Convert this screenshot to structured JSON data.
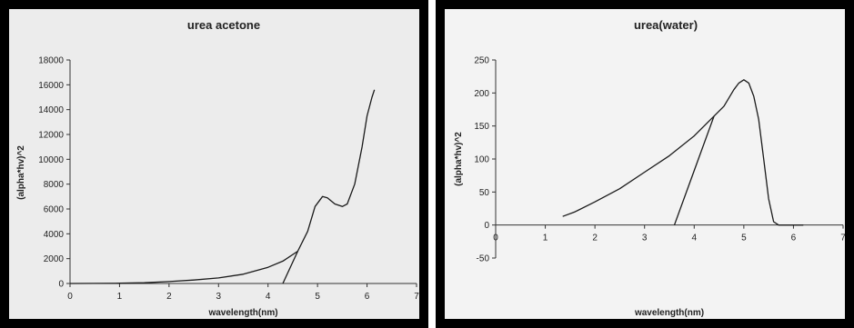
{
  "chart_data": [
    {
      "type": "line",
      "title": "urea acetone",
      "xlabel": "wavelength(nm)",
      "ylabel": "(alpha*hv)^2",
      "xlim": [
        0,
        7
      ],
      "ylim": [
        0,
        18000
      ],
      "xticks": [
        "0",
        "1",
        "2",
        "3",
        "4",
        "5",
        "6",
        "7"
      ],
      "yticks": [
        "0",
        "2000",
        "4000",
        "6000",
        "8000",
        "10000",
        "12000",
        "14000",
        "16000",
        "18000"
      ],
      "grid": false,
      "legend": "none",
      "series": [
        {
          "x": [
            0,
            0.5,
            1,
            1.5,
            2,
            2.5,
            3,
            3.5,
            4,
            4.3,
            4.6,
            4.8,
            4.95,
            5.1,
            5.2,
            5.35,
            5.5,
            5.6,
            5.75,
            5.9,
            6.0,
            6.1,
            6.15
          ],
          "y": [
            0,
            5,
            20,
            60,
            150,
            280,
            450,
            750,
            1300,
            1800,
            2600,
            4200,
            6200,
            7000,
            6900,
            6400,
            6200,
            6400,
            8000,
            11000,
            13500,
            15000,
            15600
          ]
        },
        {
          "x": [
            4.3,
            4.6
          ],
          "y": [
            0,
            2600
          ]
        }
      ],
      "colors": {
        "line": "#1a1a1a",
        "plot_bg": "#ececec"
      }
    },
    {
      "type": "line",
      "title": "urea(water)",
      "xlabel": "wavelength(nm)",
      "ylabel": "(alpha*hv)^2",
      "xlim": [
        0,
        7
      ],
      "ylim": [
        -50,
        250
      ],
      "xticks": [
        "0",
        "1",
        "2",
        "3",
        "4",
        "5",
        "6",
        "7"
      ],
      "yticks": [
        "-50",
        "0",
        "50",
        "100",
        "150",
        "200",
        "250"
      ],
      "grid": false,
      "legend": "none",
      "series": [
        {
          "x": [
            1.35,
            1.6,
            2,
            2.5,
            3,
            3.5,
            4,
            4.4,
            4.6,
            4.8,
            4.9,
            5.0,
            5.1,
            5.2,
            5.3,
            5.4,
            5.5,
            5.6,
            5.7,
            5.8,
            6.0,
            6.2
          ],
          "y": [
            13,
            20,
            35,
            55,
            80,
            105,
            135,
            165,
            180,
            205,
            215,
            220,
            215,
            195,
            160,
            100,
            40,
            5,
            0,
            0,
            0,
            0
          ]
        },
        {
          "x": [
            3.6,
            4.4
          ],
          "y": [
            0,
            165
          ]
        }
      ],
      "colors": {
        "line": "#1a1a1a",
        "plot_bg": "#f3f3f3"
      }
    }
  ]
}
